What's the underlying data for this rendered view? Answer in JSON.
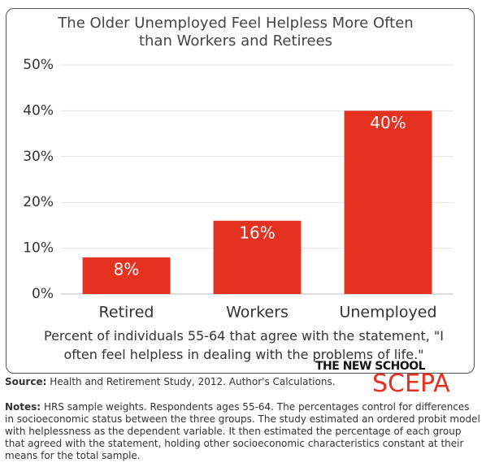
{
  "chart_data": {
    "type": "bar",
    "title": "The Older Unemployed Feel Helpless More Often than Workers and Retirees",
    "x_label": "Percent of individuals 55-64 that agree with the statement, \"I often feel helpless in dealing with the problems of life.\"",
    "categories": [
      "Retired",
      "Workers",
      "Unemployed"
    ],
    "values": [
      8,
      16,
      40
    ],
    "value_labels": [
      "8%",
      "16%",
      "40%"
    ],
    "color": "#e5311f",
    "ylim": [
      0,
      50
    ],
    "yticks": [
      {
        "value": 0,
        "label": "0%"
      },
      {
        "value": 10,
        "label": "10%"
      },
      {
        "value": 20,
        "label": "20%"
      },
      {
        "value": 30,
        "label": "30%"
      },
      {
        "value": 40,
        "label": "40%"
      },
      {
        "value": 50,
        "label": "50%"
      }
    ],
    "grid": true
  },
  "source_label": "Source:",
  "source": "Health and Retirement Study, 2012. Author's Calculations.",
  "logo": {
    "line1": "THE NEW SCHOOL",
    "line2": "SCEPA"
  },
  "notes_label": "Notes:",
  "notes": "HRS sample weights. Respondents ages 55-64. The percentages control for differences in socioeconomic status between the three groups. The study estimated an ordered probit model with helplessness as the dependent variable.  It then estimated the percentage of each group that agreed with the statement, holding other socioeconomic characteristics constant at their means for the total sample."
}
